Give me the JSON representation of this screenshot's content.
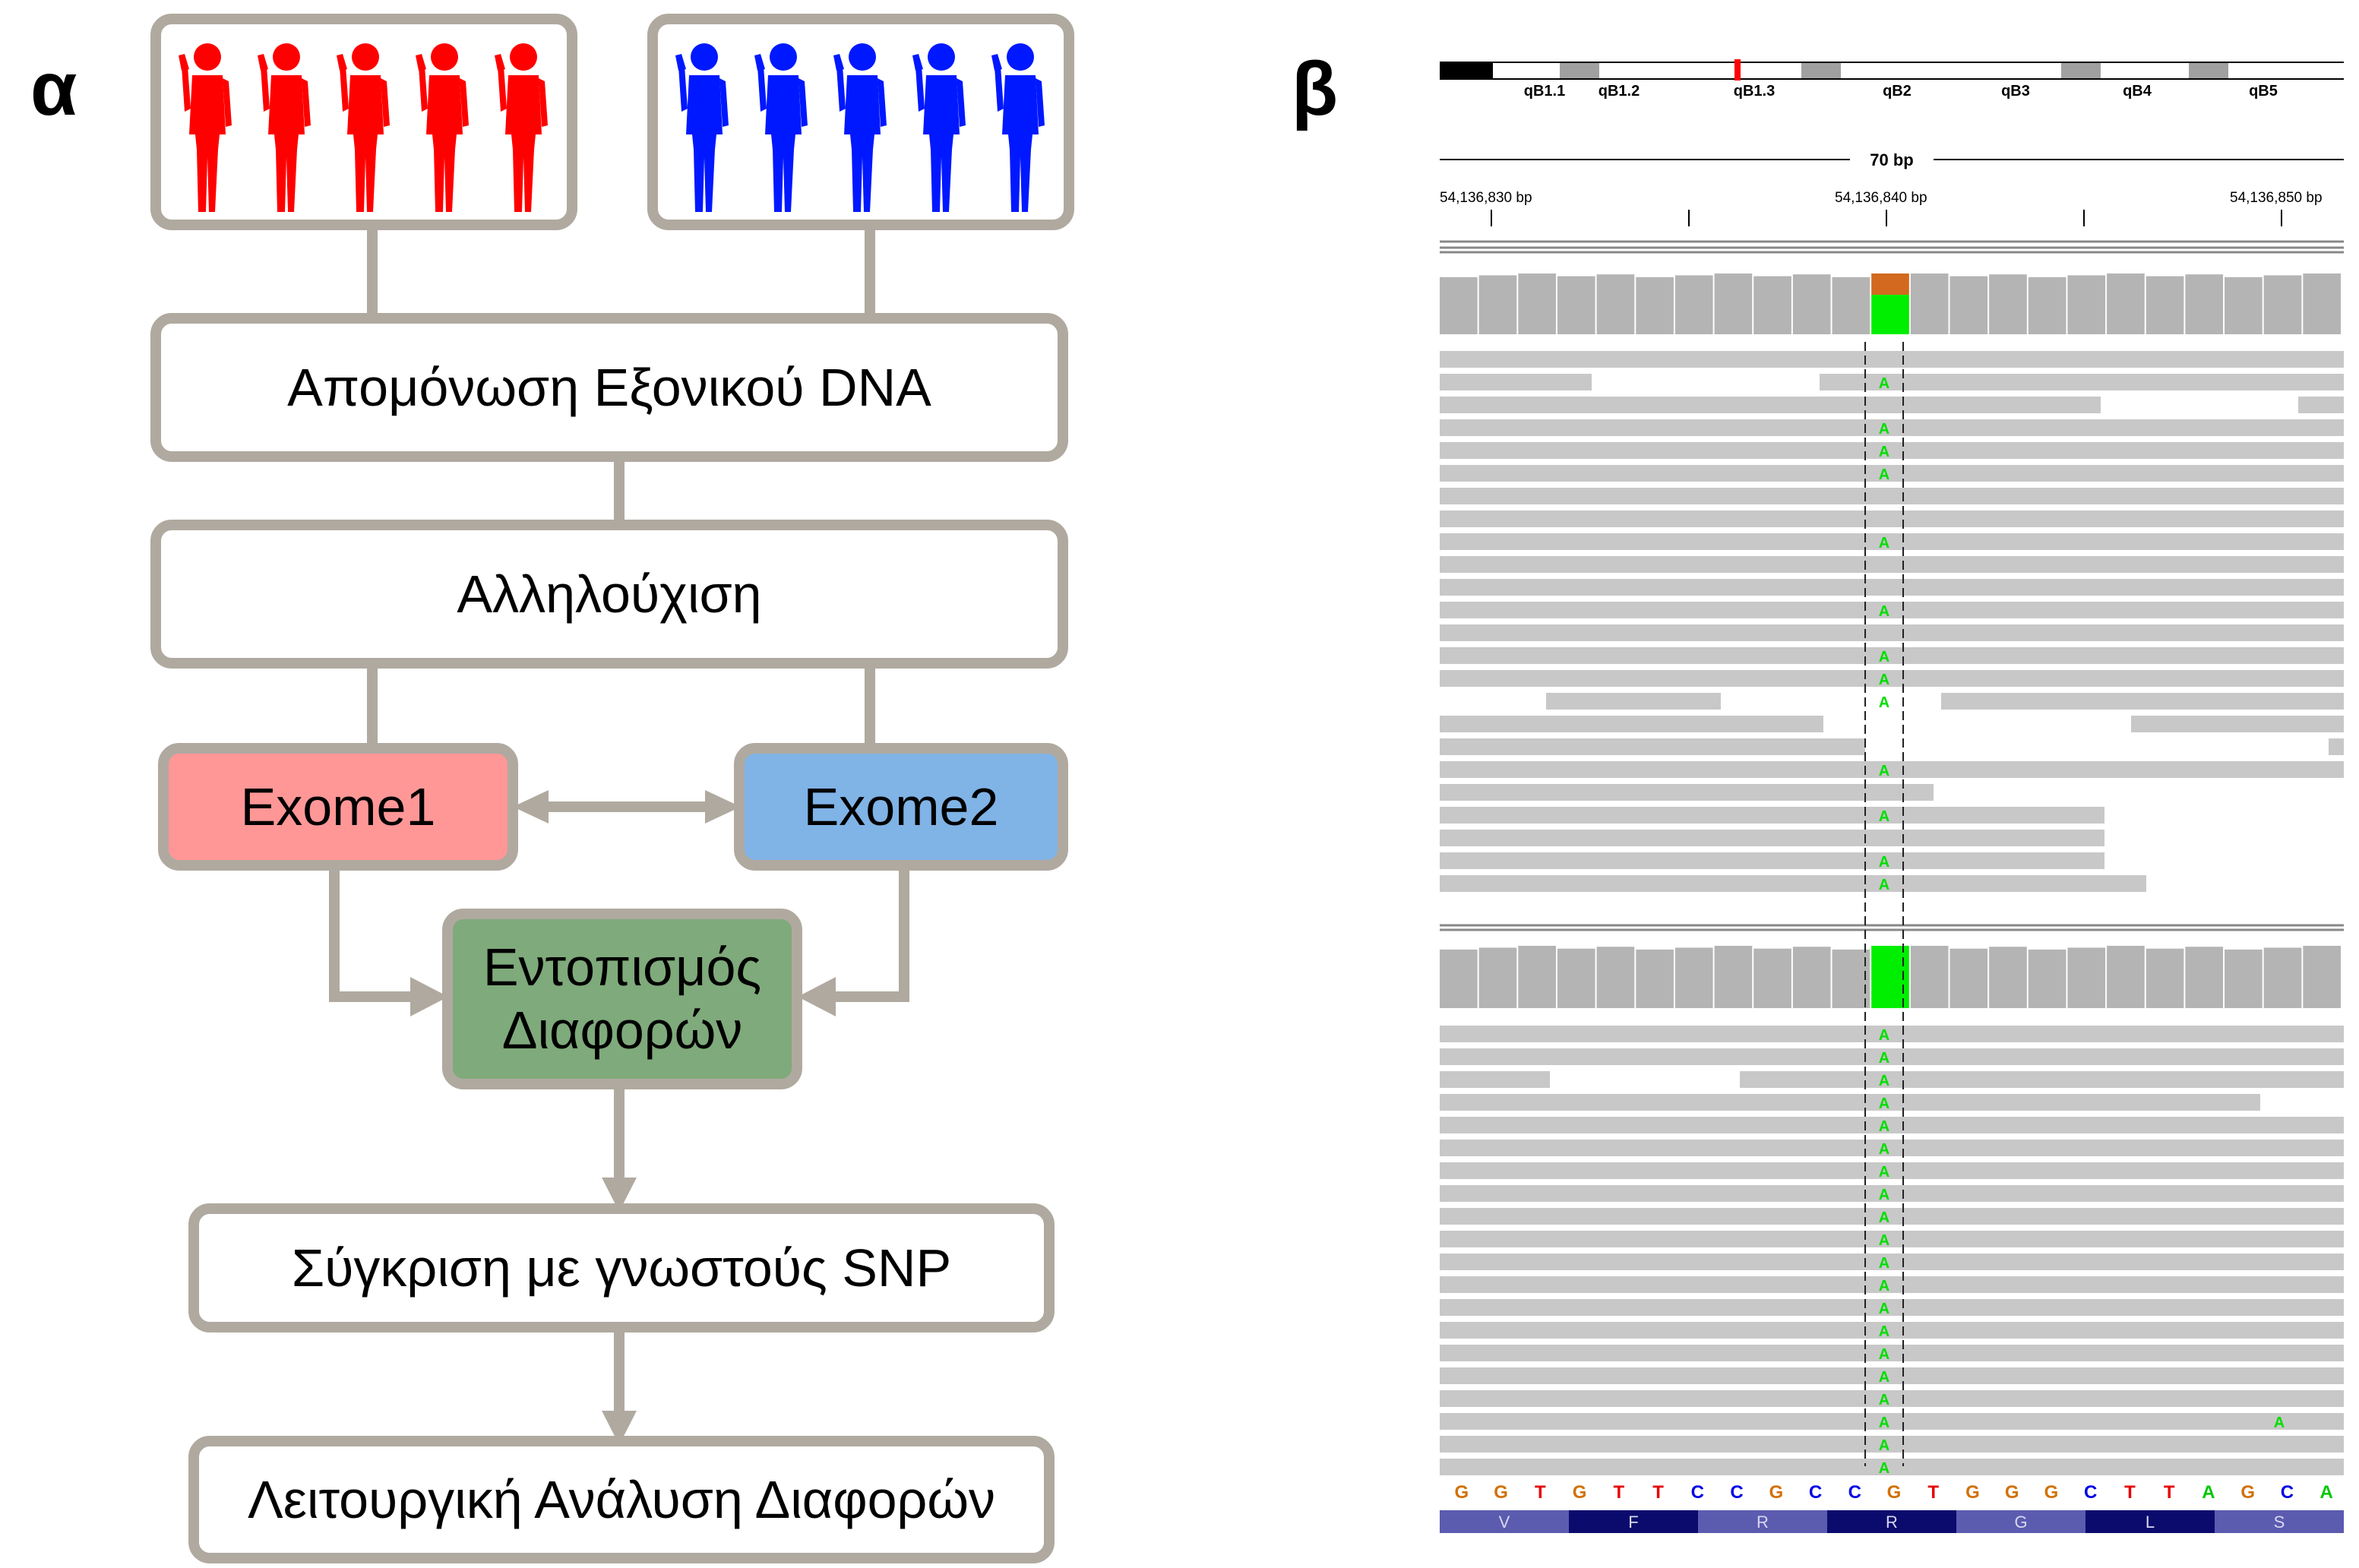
{
  "labels": {
    "panel_a": "α",
    "panel_b": "β"
  },
  "flow": {
    "step_isolation": "Απομόνωση Εξονικού DNA",
    "step_sequencing": "Αλληλούχιση",
    "exome1": "Exome1",
    "exome2": "Exome2",
    "step_differences": "Εντοπισμός Διαφορών",
    "step_snp": "Σύγκριση με γνωστούς SNP",
    "step_functional": "Λειτουργική Ανάλυση Διαφορών"
  },
  "groups": {
    "group1_count": 5,
    "group2_count": 5,
    "group1_color": "#ff0000",
    "group2_color": "#0018ff"
  },
  "igv": {
    "cytobands": [
      "qB1.1",
      "qB1.2",
      "qB1.3",
      "qB2",
      "qB3",
      "qB4",
      "qB5"
    ],
    "region_length": "70 bp",
    "ruler": [
      "54,136,830 bp",
      "54,136,840 bp",
      "54,136,850 bp"
    ],
    "variant_base": "A",
    "sequence": [
      "G",
      "G",
      "T",
      "G",
      "T",
      "T",
      "C",
      "C",
      "G",
      "C",
      "C",
      "G",
      "T",
      "G",
      "G",
      "G",
      "C",
      "T",
      "T",
      "A",
      "G",
      "C",
      "A"
    ],
    "amino_acids": [
      "V",
      "F",
      "R",
      "R",
      "G",
      "L",
      "S"
    ],
    "base_colors": {
      "A": "#00c800",
      "C": "#0000e6",
      "G": "#d17105",
      "T": "#e60000"
    },
    "top_coverage_ref_fraction": 0.35,
    "top_coverage_alt_fraction": 0.65,
    "bottom_coverage_alt_fraction": 1.0
  }
}
